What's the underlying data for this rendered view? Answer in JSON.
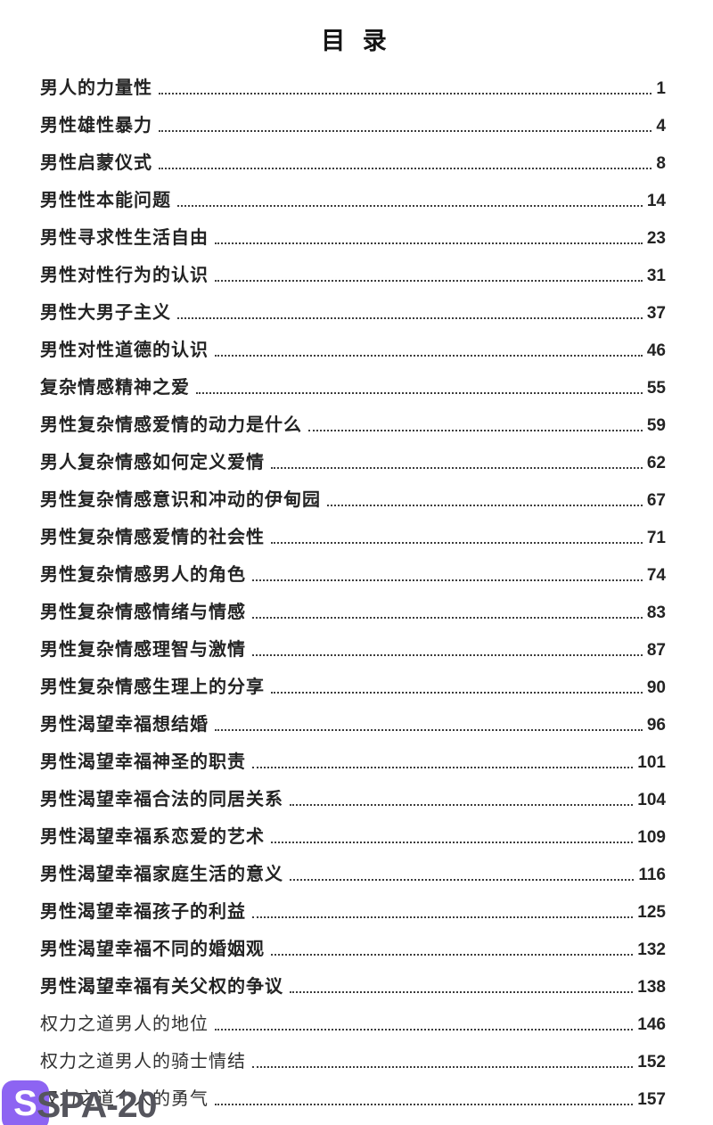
{
  "page_title": "目 录",
  "toc": {
    "entries": [
      {
        "label": "男人的力量性",
        "page": "1",
        "bold": true
      },
      {
        "label": "男性雄性暴力",
        "page": "4",
        "bold": true
      },
      {
        "label": "男性启蒙仪式",
        "page": "8",
        "bold": true
      },
      {
        "label": "男性性本能问题",
        "page": "14",
        "bold": true
      },
      {
        "label": "男性寻求性生活自由",
        "page": "23",
        "bold": true
      },
      {
        "label": "男性对性行为的认识",
        "page": "31",
        "bold": true
      },
      {
        "label": "男性大男子主义",
        "page": "37",
        "bold": true
      },
      {
        "label": "男性对性道德的认识",
        "page": "46",
        "bold": true
      },
      {
        "label": "复杂情感精神之爱",
        "page": "55",
        "bold": true
      },
      {
        "label": "男性复杂情感爱情的动力是什么",
        "page": "59",
        "bold": true
      },
      {
        "label": "男人复杂情感如何定义爱情",
        "page": "62",
        "bold": true
      },
      {
        "label": "男性复杂情感意识和冲动的伊甸园",
        "page": "67",
        "bold": true
      },
      {
        "label": "男性复杂情感爱情的社会性",
        "page": "71",
        "bold": true
      },
      {
        "label": "男性复杂情感男人的角色",
        "page": "74",
        "bold": true
      },
      {
        "label": "男性复杂情感情绪与情感",
        "page": "83",
        "bold": true
      },
      {
        "label": "男性复杂情感理智与激情",
        "page": "87",
        "bold": true
      },
      {
        "label": "男性复杂情感生理上的分享",
        "page": "90",
        "bold": true
      },
      {
        "label": "男性渴望幸福想结婚",
        "page": "96",
        "bold": true
      },
      {
        "label": "男性渴望幸福神圣的职责",
        "page": "101",
        "bold": true
      },
      {
        "label": "男性渴望幸福合法的同居关系",
        "page": "104",
        "bold": true
      },
      {
        "label": "男性渴望幸福系恋爱的艺术",
        "page": "109",
        "bold": true
      },
      {
        "label": "男性渴望幸福家庭生活的意义",
        "page": "116",
        "bold": true
      },
      {
        "label": "男性渴望幸福孩子的利益",
        "page": "125",
        "bold": true
      },
      {
        "label": "男性渴望幸福不同的婚姻观",
        "page": "132",
        "bold": true
      },
      {
        "label": "男性渴望幸福有关父权的争议",
        "page": "138",
        "bold": true
      },
      {
        "label": "权力之道男人的地位",
        "page": "146",
        "bold": false
      },
      {
        "label": "权力之道男人的骑士情结",
        "page": "152",
        "bold": false
      },
      {
        "label": "权力之道个人的勇气",
        "page": "157",
        "bold": false
      }
    ]
  },
  "watermark": {
    "badge_letter": "S",
    "text": "SPA-20",
    "badge_color": "#8d64f2",
    "text_color": "#55555d"
  }
}
